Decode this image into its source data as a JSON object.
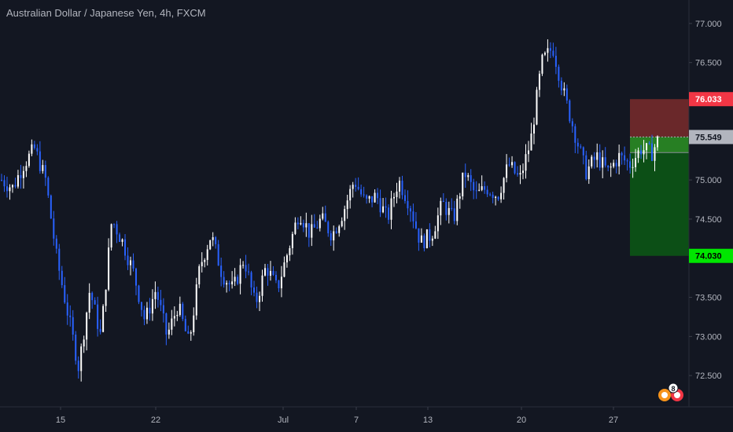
{
  "title": "Australian Dollar / Japanese Yen, 4h, FXCM",
  "colors": {
    "background": "#131722",
    "up": "#ffffff",
    "down": "#2962ff",
    "stop_zone": "#7a2c2c",
    "target_zone": "#0b5e14",
    "stop_tag": "#f23645",
    "target_tag": "#00e600",
    "current_tag": "#b2b5be",
    "grid": "#1e2230",
    "axis_text": "#b2b5be"
  },
  "chart_data": {
    "type": "candlestick",
    "series_direction_hint": "white = up, blue = down",
    "ylim": [
      72.1,
      77.3
    ],
    "y_ticks": [
      "77.000",
      "76.500",
      "76.033",
      "75.549",
      "75.000",
      "74.500",
      "74.030",
      "73.500",
      "73.000",
      "72.500"
    ],
    "x_ticks": [
      "15",
      "22",
      "Jul",
      "7",
      "13",
      "20",
      "27"
    ],
    "path": [
      [
        75.0,
        0
      ],
      [
        74.9,
        2
      ],
      [
        75.2,
        4
      ],
      [
        75.4,
        6
      ],
      [
        75.0,
        8
      ],
      [
        74.0,
        10
      ],
      [
        73.3,
        12
      ],
      [
        72.6,
        14
      ],
      [
        73.6,
        16
      ],
      [
        73.0,
        18
      ],
      [
        74.5,
        20
      ],
      [
        74.2,
        22
      ],
      [
        73.8,
        24
      ],
      [
        73.2,
        26
      ],
      [
        73.6,
        28
      ],
      [
        73.0,
        30
      ],
      [
        73.4,
        32
      ],
      [
        72.9,
        34
      ],
      [
        73.9,
        36
      ],
      [
        74.3,
        38
      ],
      [
        73.8,
        40
      ],
      [
        73.6,
        42
      ],
      [
        74.0,
        44
      ],
      [
        73.4,
        46
      ],
      [
        73.9,
        48
      ],
      [
        73.6,
        50
      ],
      [
        74.1,
        52
      ],
      [
        74.6,
        54
      ],
      [
        74.3,
        56
      ],
      [
        74.5,
        58
      ],
      [
        74.3,
        60
      ],
      [
        74.6,
        62
      ],
      [
        75.0,
        64
      ],
      [
        74.7,
        66
      ],
      [
        74.8,
        68
      ],
      [
        74.5,
        70
      ],
      [
        75.0,
        72
      ],
      [
        74.7,
        74
      ],
      [
        74.2,
        76
      ],
      [
        74.3,
        78
      ],
      [
        74.7,
        80
      ],
      [
        74.5,
        82
      ],
      [
        75.1,
        84
      ],
      [
        74.8,
        86
      ],
      [
        74.9,
        88
      ],
      [
        74.8,
        90
      ],
      [
        75.2,
        92
      ],
      [
        75.0,
        94
      ],
      [
        75.5,
        96
      ],
      [
        76.5,
        98
      ],
      [
        76.7,
        100
      ],
      [
        76.1,
        102
      ],
      [
        75.6,
        104
      ],
      [
        75.1,
        106
      ],
      [
        75.3,
        108
      ],
      [
        75.1,
        110
      ],
      [
        75.3,
        112
      ],
      [
        75.2,
        114
      ],
      [
        75.4,
        116
      ],
      [
        75.35,
        118
      ],
      [
        75.5,
        119
      ]
    ],
    "position": {
      "type": "short",
      "entry": 75.35,
      "stop": 76.033,
      "target": 74.03,
      "current": 75.549,
      "stop_label": "76.033",
      "target_label": "74.030",
      "current_label": "75.549"
    },
    "badge": "8"
  }
}
